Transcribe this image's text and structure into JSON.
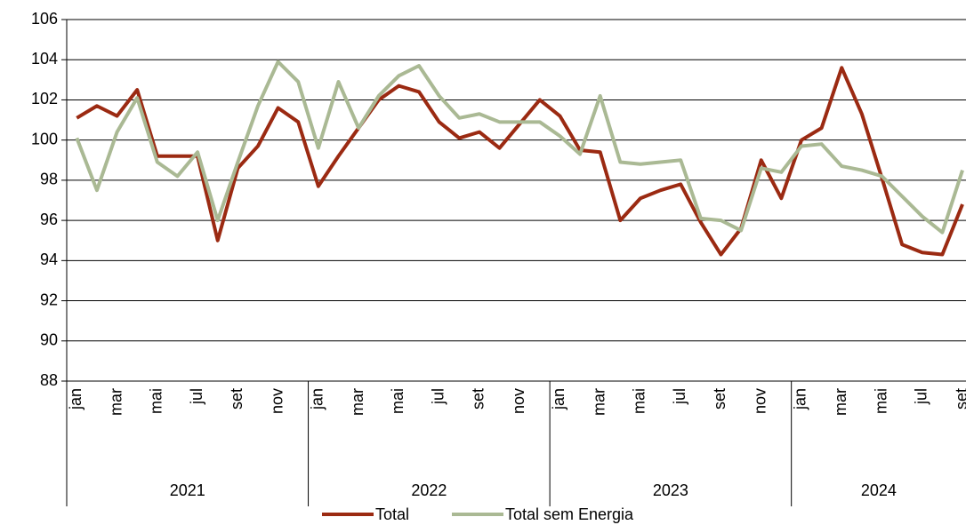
{
  "chart_data": {
    "type": "line",
    "groups": [
      {
        "name": "2021",
        "categories": [
          "jan",
          null,
          "mar",
          null,
          "mai",
          null,
          "jul",
          null,
          "set",
          null,
          "nov",
          null
        ]
      },
      {
        "name": "2022",
        "categories": [
          "jan",
          null,
          "mar",
          null,
          "mai",
          null,
          "jul",
          null,
          "set",
          null,
          "nov",
          null
        ]
      },
      {
        "name": "2023",
        "categories": [
          "jan",
          null,
          "mar",
          null,
          "mai",
          null,
          "jul",
          null,
          "set",
          null,
          "nov",
          null
        ]
      },
      {
        "name": "2024",
        "categories": [
          "jan",
          null,
          "mar",
          null,
          "mai",
          null,
          "jul",
          null,
          "set"
        ]
      }
    ],
    "series": [
      {
        "name": "Total",
        "color": "#9b2a12",
        "values": [
          101.1,
          101.7,
          101.2,
          102.5,
          99.2,
          99.2,
          99.2,
          95.0,
          98.6,
          99.7,
          101.6,
          100.9,
          97.7,
          99.2,
          100.6,
          102.0,
          102.7,
          102.4,
          100.9,
          100.1,
          100.4,
          99.6,
          100.8,
          102.0,
          101.2,
          99.5,
          99.4,
          96.0,
          97.1,
          97.5,
          97.8,
          95.9,
          94.3,
          95.6,
          99.0,
          97.1,
          100.0,
          100.6,
          103.6,
          101.3,
          98.1,
          94.8,
          94.4,
          94.3,
          96.8
        ]
      },
      {
        "name": "Total sem Energia",
        "color": "#aab994",
        "values": [
          100.1,
          97.5,
          100.4,
          102.1,
          98.9,
          98.2,
          99.4,
          96.0,
          98.9,
          101.7,
          103.9,
          102.9,
          99.6,
          102.9,
          100.6,
          102.2,
          103.2,
          103.7,
          102.2,
          101.1,
          101.3,
          100.9,
          100.9,
          100.9,
          100.2,
          99.3,
          102.2,
          98.9,
          98.8,
          98.9,
          99.0,
          96.1,
          96.0,
          95.5,
          98.6,
          98.4,
          99.7,
          99.8,
          98.7,
          98.5,
          98.2,
          97.2,
          96.2,
          95.4,
          98.5
        ]
      }
    ],
    "ylim": [
      88,
      106
    ],
    "yticks": [
      88,
      90,
      92,
      94,
      96,
      98,
      100,
      102,
      104,
      106
    ],
    "grid": true,
    "legend": "bottom"
  }
}
